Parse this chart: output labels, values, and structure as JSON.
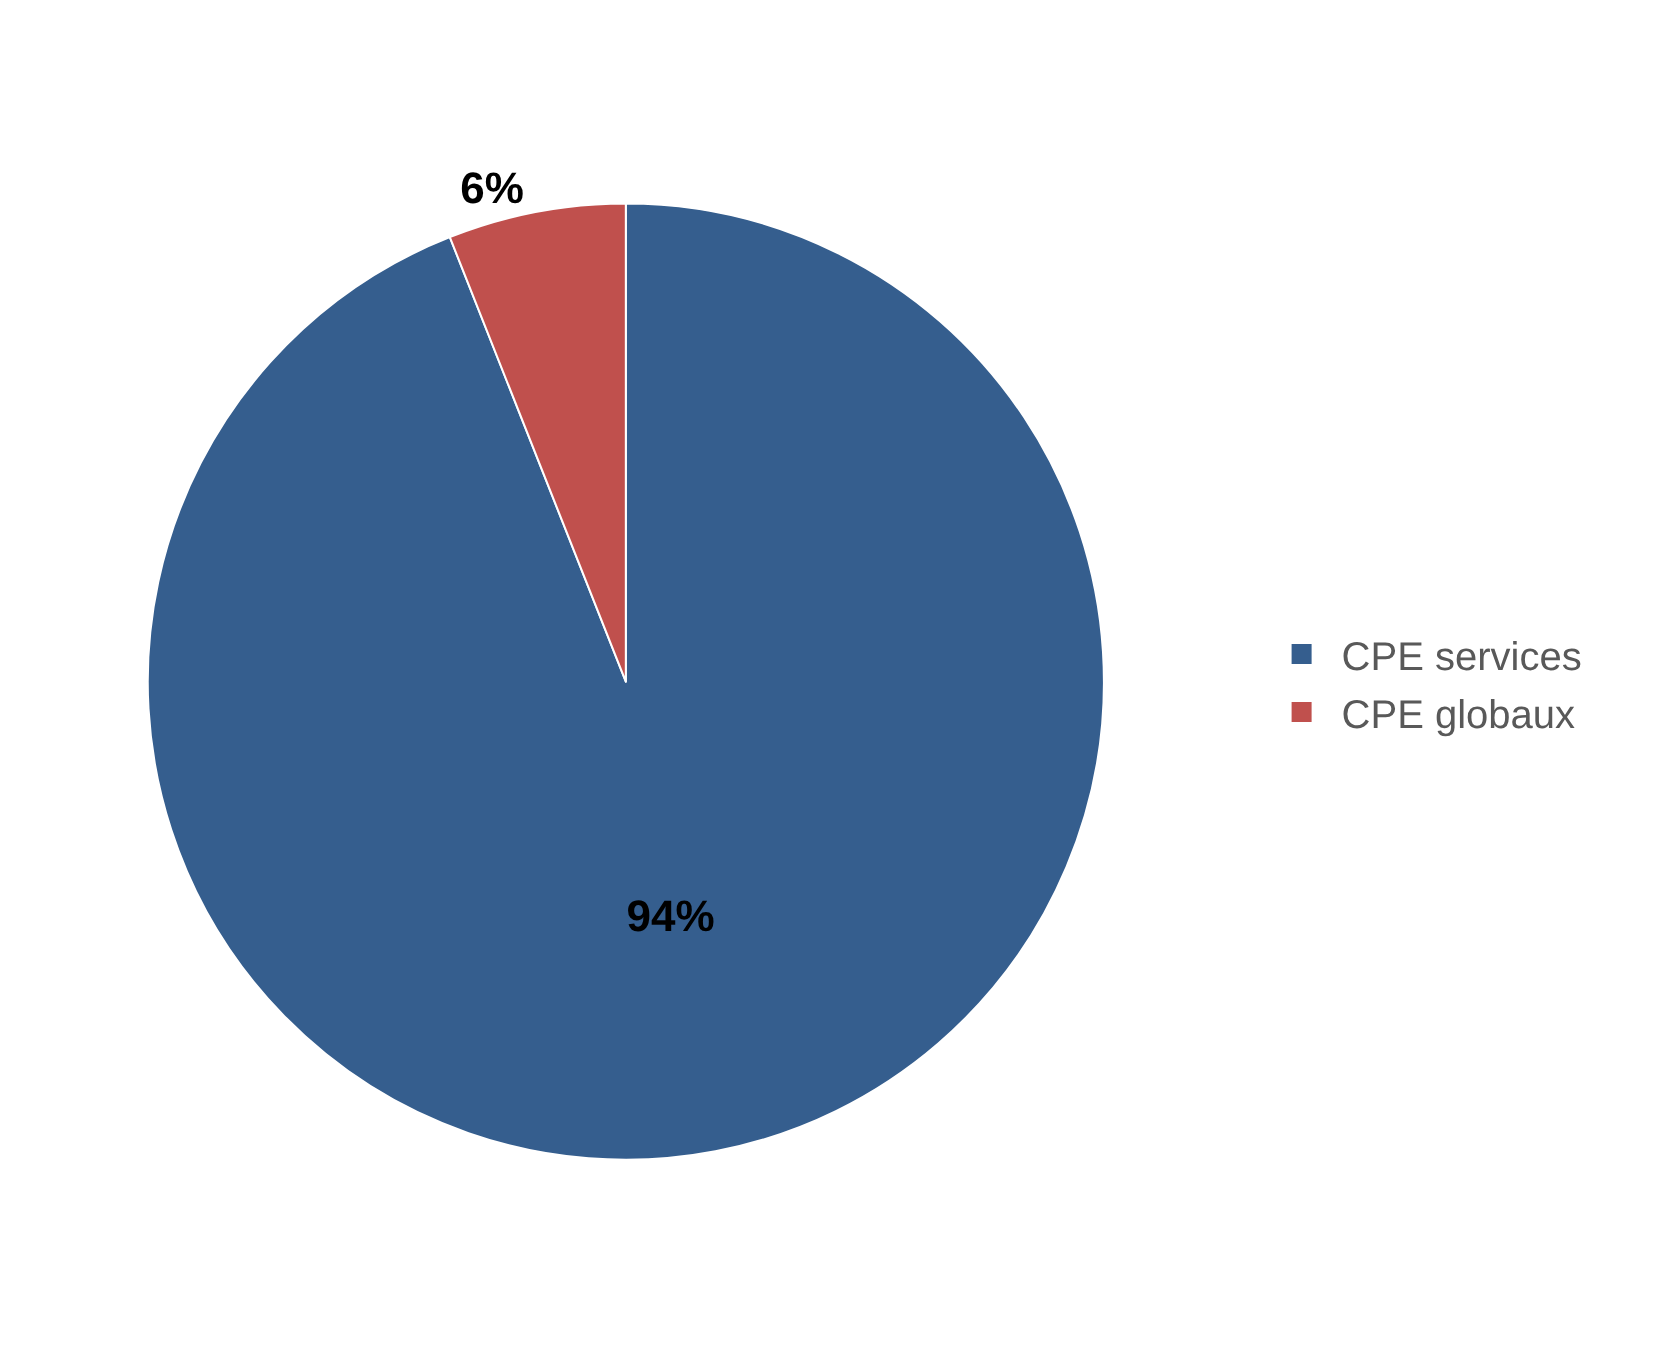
{
  "chart_data": {
    "type": "pie",
    "categories": [
      "CPE services",
      "CPE globaux"
    ],
    "values": [
      94,
      6
    ],
    "colors": [
      "#355e8e",
      "#c0504d"
    ],
    "value_labels": [
      "94%",
      "6%"
    ],
    "legend": "right"
  }
}
